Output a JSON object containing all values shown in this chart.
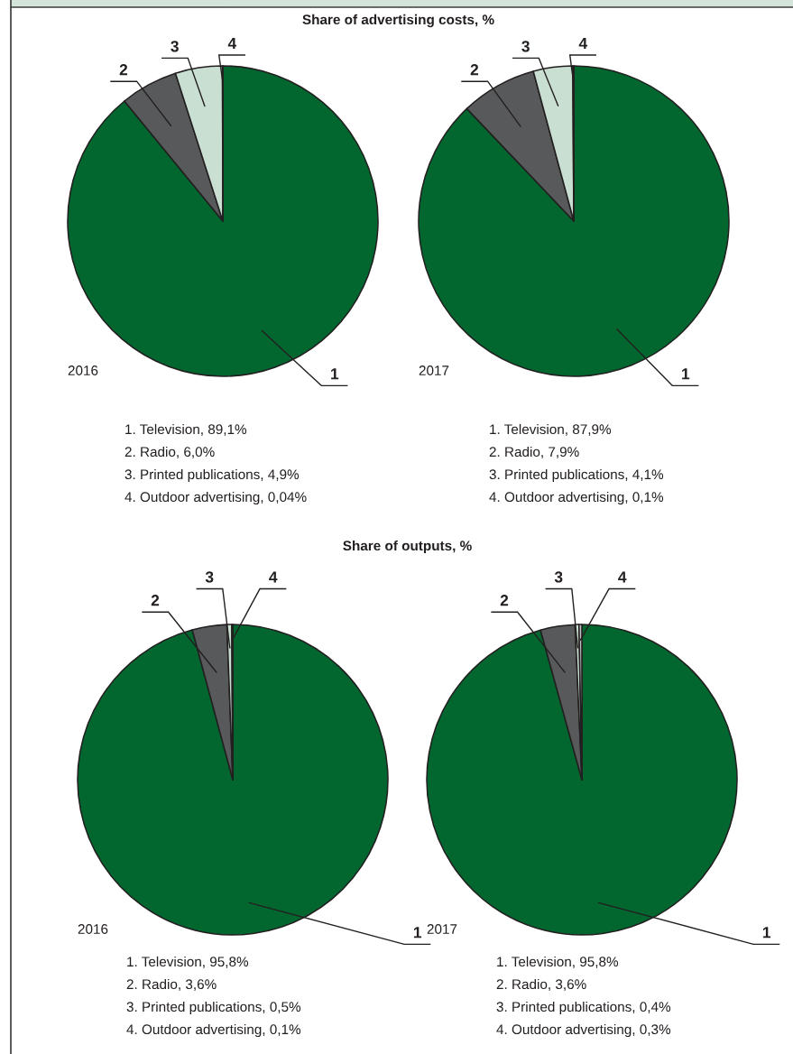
{
  "chart_data": [
    {
      "type": "pie",
      "title": "Share of advertising costs, %",
      "categories": [
        "1",
        "2",
        "3",
        "4"
      ],
      "values": [
        89.1,
        6.0,
        4.9,
        0.04
      ],
      "colors": [
        "#02662f",
        "#58595b",
        "#c9dfd1",
        "#bcbec0"
      ],
      "annotations": [
        "2016",
        "1. Television, 89,1%",
        "2. Radio, 6,0%",
        "3. Printed publications, 4,9%",
        "4. Outdoor advertising, 0,04%"
      ]
    },
    {
      "type": "pie",
      "categories": [
        "1",
        "2",
        "3",
        "4"
      ],
      "values": [
        87.9,
        7.9,
        4.1,
        0.1
      ],
      "colors": [
        "#02662f",
        "#58595b",
        "#c9dfd1",
        "#bcbec0"
      ],
      "annotations": [
        "2017",
        "1. Television, 87,9%",
        "2. Radio, 7,9%",
        "3. Printed publications, 4,1%",
        "4. Outdoor advertising, 0,1%"
      ]
    },
    {
      "type": "pie",
      "title": "Share of outputs, %",
      "categories": [
        "1",
        "2",
        "3",
        "4"
      ],
      "values": [
        95.8,
        3.6,
        0.5,
        0.1
      ],
      "colors": [
        "#02662f",
        "#58595b",
        "#c9dfd1",
        "#bcbec0"
      ],
      "annotations": [
        "2016",
        "1. Television, 95,8%",
        "2. Radio, 3,6%",
        "3. Printed publications, 0,5%",
        "4. Outdoor advertising, 0,1%"
      ]
    },
    {
      "type": "pie",
      "categories": [
        "1",
        "2",
        "3",
        "4"
      ],
      "values": [
        95.8,
        3.6,
        0.4,
        0.3
      ],
      "colors": [
        "#02662f",
        "#58595b",
        "#c9dfd1",
        "#bcbec0"
      ],
      "annotations": [
        "2017",
        "1. Television, 95,8%",
        "2. Radio, 3,6%",
        "3. Printed publications, 0,4%",
        "4. Outdoor advertising, 0,3%"
      ]
    }
  ]
}
